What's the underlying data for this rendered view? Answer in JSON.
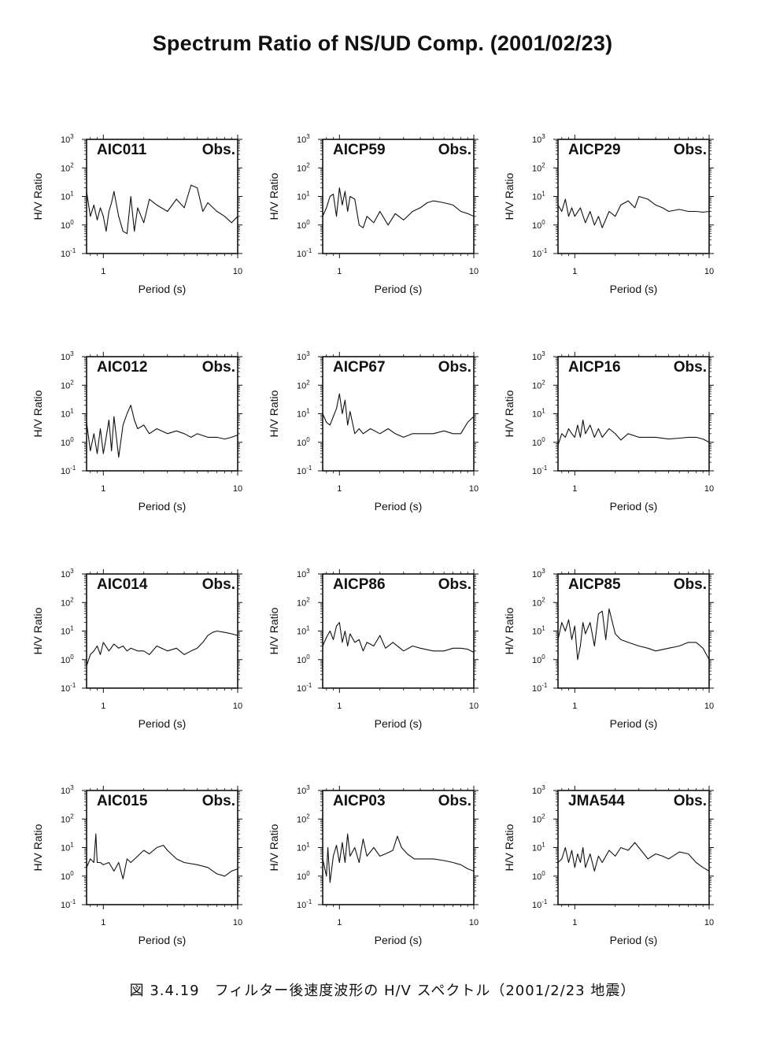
{
  "page": {
    "title": "Spectrum Ratio of NS/UD Comp. (2001/02/23)",
    "caption": "図 3.4.19　フィルター後速度波形の H/V スペクトル（2001/2/23 地震）"
  },
  "axes_common": {
    "xlabel": "Period (s)",
    "ylabel": "H/V Ratio",
    "x_scale": "log",
    "y_scale": "log",
    "xlim": [
      0.75,
      10
    ],
    "ylim": [
      0.1,
      1000
    ],
    "x_ticks": [
      "1",
      "10"
    ],
    "y_ticks": [
      {
        "base": "10",
        "exp": "3"
      },
      {
        "base": "10",
        "exp": "2"
      },
      {
        "base": "10",
        "exp": "1"
      },
      {
        "base": "10",
        "exp": "0"
      },
      {
        "base": "10",
        "exp": "-1"
      }
    ],
    "obs_label": "Obs.",
    "line_color": "#111111"
  },
  "chart_data": [
    {
      "type": "line",
      "station": "AIC011",
      "x": [
        0.75,
        0.8,
        0.85,
        0.9,
        0.95,
        1.0,
        1.05,
        1.1,
        1.15,
        1.2,
        1.3,
        1.4,
        1.5,
        1.6,
        1.7,
        1.8,
        2.0,
        2.2,
        2.5,
        3.0,
        3.5,
        4.0,
        4.5,
        5.0,
        5.5,
        6.0,
        7.0,
        8.0,
        9.0,
        10.0
      ],
      "y": [
        15,
        2,
        5,
        1.5,
        4,
        2,
        0.6,
        3,
        6,
        15,
        2,
        0.6,
        0.5,
        10,
        0.6,
        4,
        1.2,
        8,
        5,
        3,
        8,
        4,
        25,
        20,
        3,
        6,
        3,
        2,
        1.2,
        2
      ]
    },
    {
      "type": "line",
      "station": "AICP59",
      "x": [
        0.75,
        0.8,
        0.85,
        0.9,
        0.95,
        1.0,
        1.05,
        1.1,
        1.15,
        1.2,
        1.3,
        1.4,
        1.5,
        1.6,
        1.8,
        2.0,
        2.3,
        2.6,
        3.0,
        3.5,
        4.0,
        4.5,
        5.0,
        6.0,
        7.0,
        8.0,
        9.0,
        10.0
      ],
      "y": [
        2,
        4,
        10,
        12,
        2,
        20,
        5,
        15,
        3,
        10,
        8,
        1,
        0.8,
        2,
        1.2,
        3,
        1,
        2.5,
        1.5,
        3,
        4,
        6,
        7,
        6,
        5,
        3,
        2.5,
        2
      ]
    },
    {
      "type": "line",
      "station": "AICP29",
      "x": [
        0.75,
        0.8,
        0.85,
        0.9,
        0.95,
        1.0,
        1.1,
        1.2,
        1.3,
        1.4,
        1.5,
        1.6,
        1.8,
        2.0,
        2.2,
        2.5,
        2.8,
        3.0,
        3.5,
        4.0,
        4.5,
        5.0,
        6.0,
        7.0,
        8.0,
        9.0,
        10.0
      ],
      "y": [
        5,
        3,
        8,
        2,
        4,
        2,
        4,
        1.2,
        3,
        1,
        2,
        0.8,
        3,
        2,
        5,
        7,
        4,
        10,
        8,
        5,
        4,
        3,
        3.5,
        3,
        3,
        2.8,
        3
      ]
    },
    {
      "type": "line",
      "station": "AIC012",
      "x": [
        0.75,
        0.8,
        0.85,
        0.9,
        0.95,
        1.0,
        1.05,
        1.1,
        1.15,
        1.2,
        1.3,
        1.4,
        1.5,
        1.6,
        1.7,
        1.8,
        2.0,
        2.2,
        2.5,
        3.0,
        3.5,
        4.0,
        4.5,
        5.0,
        6.0,
        7.0,
        8.0,
        9.0,
        10.0
      ],
      "y": [
        5,
        0.5,
        2,
        0.4,
        3,
        0.4,
        1.5,
        6,
        0.5,
        8,
        0.3,
        4,
        10,
        20,
        6,
        3,
        4,
        2,
        3,
        2,
        2.5,
        2,
        1.5,
        2,
        1.5,
        1.5,
        1.3,
        1.5,
        1.8
      ]
    },
    {
      "type": "line",
      "station": "AICP67",
      "x": [
        0.75,
        0.8,
        0.85,
        0.9,
        0.95,
        1.0,
        1.05,
        1.1,
        1.15,
        1.2,
        1.3,
        1.4,
        1.5,
        1.7,
        2.0,
        2.3,
        2.6,
        3.0,
        3.5,
        4.0,
        5.0,
        6.0,
        7.0,
        8.0,
        9.0,
        10.0
      ],
      "y": [
        10,
        5,
        4,
        8,
        15,
        50,
        10,
        30,
        4,
        12,
        2,
        3,
        2,
        3,
        2,
        3,
        2,
        1.5,
        2,
        2,
        2,
        2.5,
        2,
        2,
        5,
        8
      ]
    },
    {
      "type": "line",
      "station": "AICP16",
      "x": [
        0.75,
        0.8,
        0.85,
        0.9,
        0.95,
        1.0,
        1.05,
        1.1,
        1.15,
        1.2,
        1.3,
        1.4,
        1.5,
        1.6,
        1.8,
        2.0,
        2.2,
        2.5,
        3.0,
        3.5,
        4.0,
        5.0,
        6.0,
        7.0,
        8.0,
        9.0,
        10.0
      ],
      "y": [
        0.8,
        2,
        1.5,
        3,
        2,
        1.5,
        4,
        1.5,
        6,
        2,
        4,
        1.5,
        3,
        1.5,
        3,
        2,
        1.2,
        2,
        1.5,
        1.5,
        1.5,
        1.3,
        1.4,
        1.5,
        1.5,
        1.3,
        1
      ]
    },
    {
      "type": "line",
      "station": "AIC014",
      "x": [
        0.75,
        0.8,
        0.85,
        0.9,
        0.95,
        1.0,
        1.1,
        1.2,
        1.3,
        1.4,
        1.5,
        1.6,
        1.8,
        2.0,
        2.2,
        2.5,
        3.0,
        3.5,
        4.0,
        4.5,
        5.0,
        5.5,
        6.0,
        6.5,
        7.0,
        8.0,
        9.0,
        10.0
      ],
      "y": [
        0.6,
        1.5,
        2,
        3,
        1.5,
        4,
        2,
        3.5,
        2.5,
        3,
        2,
        2.5,
        2,
        2,
        1.5,
        3,
        2,
        2.5,
        1.5,
        2,
        2.5,
        4,
        7,
        9,
        10,
        9,
        8,
        7
      ]
    },
    {
      "type": "line",
      "station": "AICP86",
      "x": [
        0.75,
        0.8,
        0.85,
        0.9,
        0.95,
        1.0,
        1.05,
        1.1,
        1.15,
        1.2,
        1.3,
        1.4,
        1.5,
        1.6,
        1.8,
        2.0,
        2.2,
        2.5,
        3.0,
        3.5,
        4.0,
        5.0,
        6.0,
        7.0,
        8.0,
        9.0,
        10.0
      ],
      "y": [
        3,
        6,
        10,
        5,
        15,
        20,
        4,
        10,
        3,
        8,
        4,
        5,
        2,
        4,
        3,
        7,
        2.5,
        4,
        2,
        3,
        2.5,
        2,
        2,
        2.5,
        2.5,
        2.3,
        1.8
      ]
    },
    {
      "type": "line",
      "station": "AICP85",
      "x": [
        0.75,
        0.8,
        0.85,
        0.9,
        0.95,
        1.0,
        1.05,
        1.1,
        1.15,
        1.2,
        1.3,
        1.4,
        1.5,
        1.6,
        1.7,
        1.8,
        2.0,
        2.2,
        2.5,
        3.0,
        3.5,
        4.0,
        5.0,
        6.0,
        7.0,
        8.0,
        9.0,
        10.0
      ],
      "y": [
        5,
        20,
        10,
        25,
        5,
        15,
        1,
        3,
        20,
        8,
        20,
        3,
        40,
        50,
        5,
        60,
        8,
        5,
        4,
        3,
        2.5,
        2,
        2.5,
        3,
        4,
        4,
        2.5,
        1
      ]
    },
    {
      "type": "line",
      "station": "AIC015",
      "x": [
        0.75,
        0.8,
        0.85,
        0.88,
        0.9,
        0.95,
        1.0,
        1.1,
        1.2,
        1.3,
        1.4,
        1.5,
        1.6,
        1.8,
        2.0,
        2.2,
        2.5,
        2.8,
        3.0,
        3.5,
        4.0,
        5.0,
        6.0,
        7.0,
        8.0,
        9.0,
        10.0
      ],
      "y": [
        2,
        4,
        3,
        30,
        3,
        3,
        2.5,
        3,
        1.5,
        3,
        0.8,
        4,
        3,
        5,
        8,
        6,
        10,
        12,
        8,
        4,
        3,
        2.5,
        2,
        1.2,
        1,
        1.5,
        1.8
      ]
    },
    {
      "type": "line",
      "station": "AICP03",
      "x": [
        0.75,
        0.8,
        0.82,
        0.85,
        0.9,
        0.95,
        1.0,
        1.05,
        1.1,
        1.15,
        1.2,
        1.3,
        1.4,
        1.5,
        1.6,
        1.8,
        2.0,
        2.2,
        2.5,
        2.7,
        2.9,
        3.2,
        3.6,
        4.0,
        5.0,
        6.0,
        7.0,
        8.0,
        9.0,
        10.0
      ],
      "y": [
        4,
        1,
        10,
        0.6,
        5,
        12,
        3,
        15,
        3,
        30,
        5,
        10,
        3,
        20,
        5,
        10,
        5,
        6,
        8,
        25,
        10,
        6,
        4,
        4,
        4,
        3.5,
        3,
        2.5,
        1.8,
        1.5
      ]
    },
    {
      "type": "line",
      "station": "JMA544",
      "x": [
        0.75,
        0.8,
        0.85,
        0.9,
        0.95,
        1.0,
        1.05,
        1.1,
        1.15,
        1.2,
        1.3,
        1.4,
        1.5,
        1.6,
        1.8,
        2.0,
        2.2,
        2.5,
        2.8,
        3.0,
        3.5,
        4.0,
        4.5,
        5.0,
        6.0,
        7.0,
        8.0,
        9.0,
        10.0
      ],
      "y": [
        3,
        4,
        10,
        3,
        8,
        2,
        6,
        3,
        10,
        2,
        6,
        1.5,
        5,
        3,
        8,
        5,
        10,
        8,
        15,
        10,
        4,
        6,
        5,
        4,
        7,
        6,
        3,
        2,
        1.5
      ]
    }
  ]
}
